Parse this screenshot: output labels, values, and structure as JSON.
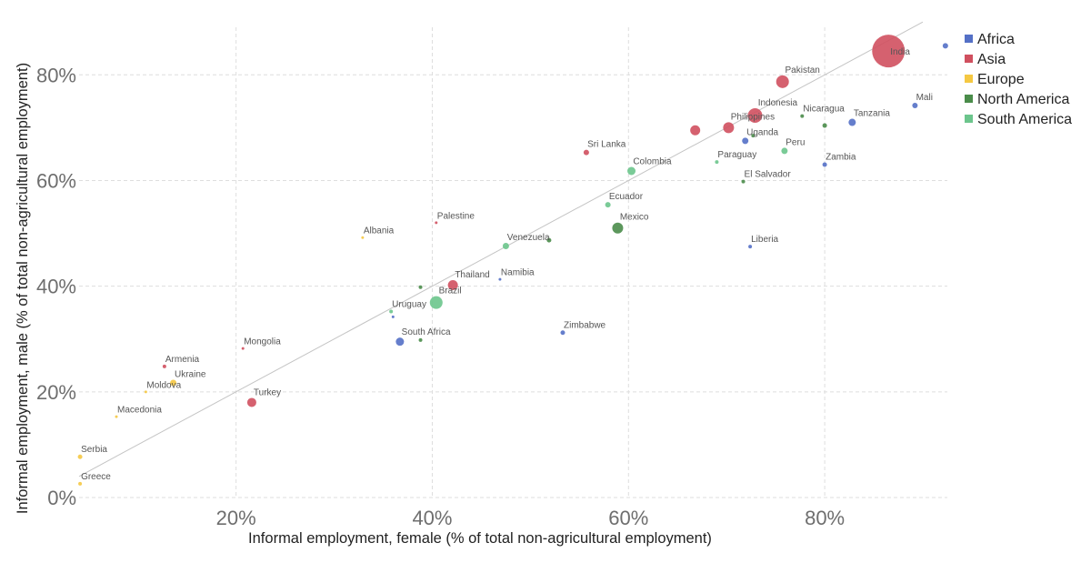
{
  "chart_data": {
    "type": "scatter",
    "xlabel": "Informal employment, female (% of total non-agricultural employment)",
    "ylabel": "Informal employment, male (% of total non-agricultural employment)",
    "xlim": [
      4,
      92.5
    ],
    "ylim": [
      0,
      89
    ],
    "xticks": [
      {
        "value": 20,
        "label": "20%"
      },
      {
        "value": 40,
        "label": "40%"
      },
      {
        "value": 60,
        "label": "60%"
      },
      {
        "value": 80,
        "label": "80%"
      }
    ],
    "yticks": [
      {
        "value": 0,
        "label": "0%"
      },
      {
        "value": 20,
        "label": "20%"
      },
      {
        "value": 40,
        "label": "40%"
      },
      {
        "value": 60,
        "label": "60%"
      },
      {
        "value": 80,
        "label": "80%"
      }
    ],
    "grid": true,
    "legend_position": "top-right",
    "reference_line": {
      "from": [
        4,
        4
      ],
      "to": [
        90,
        90
      ]
    },
    "regions": [
      {
        "name": "Africa",
        "color": "#5470c6"
      },
      {
        "name": "Asia",
        "color": "#d0505f"
      },
      {
        "name": "Europe",
        "color": "#f5c842"
      },
      {
        "name": "North America",
        "color": "#4a8c4a"
      },
      {
        "name": "South America",
        "color": "#6cc58c"
      }
    ],
    "points": [
      {
        "label": "India",
        "region": "Asia",
        "x": 86.5,
        "y": 84.5,
        "size": 18
      },
      {
        "label": "",
        "region": "Africa",
        "x": 92.3,
        "y": 85.5,
        "size": 3
      },
      {
        "label": "Pakistan",
        "region": "Asia",
        "x": 75.7,
        "y": 78.7,
        "size": 7
      },
      {
        "label": "Mali",
        "region": "Africa",
        "x": 89.2,
        "y": 74.2,
        "size": 3
      },
      {
        "label": "Indonesia",
        "region": "Asia",
        "x": 72.9,
        "y": 72.3,
        "size": 8
      },
      {
        "label": "Nicaragua",
        "region": "North America",
        "x": 77.7,
        "y": 72.2,
        "size": 2
      },
      {
        "label": "Tanzania",
        "region": "Africa",
        "x": 82.8,
        "y": 71.0,
        "size": 4
      },
      {
        "label": "",
        "region": "North America",
        "x": 80.0,
        "y": 70.4,
        "size": 2.5
      },
      {
        "label": "Philippines",
        "region": "Asia",
        "x": 70.2,
        "y": 70.0,
        "size": 6
      },
      {
        "label": "",
        "region": "Asia",
        "x": 66.8,
        "y": 69.5,
        "size": 5.5
      },
      {
        "label": "Uganda",
        "region": "Africa",
        "x": 71.9,
        "y": 67.5,
        "size": 3.5
      },
      {
        "label": "",
        "region": "North America",
        "x": 72.7,
        "y": 68.5,
        "size": 2
      },
      {
        "label": "Sri Lanka",
        "region": "Asia",
        "x": 55.7,
        "y": 65.3,
        "size": 3
      },
      {
        "label": "Peru",
        "region": "South America",
        "x": 75.9,
        "y": 65.6,
        "size": 3.5
      },
      {
        "label": "Paraguay",
        "region": "South America",
        "x": 69.0,
        "y": 63.5,
        "size": 2
      },
      {
        "label": "Zambia",
        "region": "Africa",
        "x": 80.0,
        "y": 63.0,
        "size": 2.5
      },
      {
        "label": "Colombia",
        "region": "South America",
        "x": 60.3,
        "y": 61.8,
        "size": 4.5
      },
      {
        "label": "El Salvador",
        "region": "North America",
        "x": 71.7,
        "y": 59.8,
        "size": 2
      },
      {
        "label": "Ecuador",
        "region": "South America",
        "x": 57.9,
        "y": 55.4,
        "size": 3
      },
      {
        "label": "Palestine",
        "region": "Asia",
        "x": 40.4,
        "y": 52.0,
        "size": 1.5
      },
      {
        "label": "Mexico",
        "region": "North America",
        "x": 58.9,
        "y": 51.0,
        "size": 6
      },
      {
        "label": "Albania",
        "region": "Europe",
        "x": 32.9,
        "y": 49.2,
        "size": 1.5
      },
      {
        "label": "",
        "region": "North America",
        "x": 51.9,
        "y": 48.7,
        "size": 2.5
      },
      {
        "label": "Venezuela",
        "region": "South America",
        "x": 47.5,
        "y": 47.6,
        "size": 3.5
      },
      {
        "label": "Liberia",
        "region": "Africa",
        "x": 72.4,
        "y": 47.5,
        "size": 2
      },
      {
        "label": "Namibia",
        "region": "Africa",
        "x": 46.9,
        "y": 41.3,
        "size": 1.5
      },
      {
        "label": "Thailand",
        "region": "Asia",
        "x": 42.1,
        "y": 40.2,
        "size": 5.5
      },
      {
        "label": "",
        "region": "North America",
        "x": 38.8,
        "y": 39.8,
        "size": 2
      },
      {
        "label": "Brazil",
        "region": "South America",
        "x": 40.4,
        "y": 36.9,
        "size": 7
      },
      {
        "label": "Uruguay",
        "region": "South America",
        "x": 35.8,
        "y": 35.2,
        "size": 2
      },
      {
        "label": "",
        "region": "Africa",
        "x": 36.0,
        "y": 34.2,
        "size": 1.5
      },
      {
        "label": "Zimbabwe",
        "region": "Africa",
        "x": 53.3,
        "y": 31.2,
        "size": 2.5
      },
      {
        "label": "South Africa",
        "region": "Africa",
        "x": 36.7,
        "y": 29.5,
        "size": 4.5
      },
      {
        "label": "",
        "region": "North America",
        "x": 38.8,
        "y": 29.8,
        "size": 2
      },
      {
        "label": "Mongolia",
        "region": "Asia",
        "x": 20.7,
        "y": 28.2,
        "size": 1.5
      },
      {
        "label": "Armenia",
        "region": "Asia",
        "x": 12.7,
        "y": 24.8,
        "size": 2
      },
      {
        "label": "Ukraine",
        "region": "Europe",
        "x": 13.6,
        "y": 21.7,
        "size": 3.5
      },
      {
        "label": "Moldova",
        "region": "Europe",
        "x": 10.8,
        "y": 20.0,
        "size": 1.5
      },
      {
        "label": "Turkey",
        "region": "Asia",
        "x": 21.6,
        "y": 18.0,
        "size": 5
      },
      {
        "label": "Macedonia",
        "region": "Europe",
        "x": 7.8,
        "y": 15.3,
        "size": 1.5
      },
      {
        "label": "Serbia",
        "region": "Europe",
        "x": 4.1,
        "y": 7.7,
        "size": 2.5
      },
      {
        "label": "Greece",
        "region": "Europe",
        "x": 4.1,
        "y": 2.6,
        "size": 2
      }
    ]
  }
}
